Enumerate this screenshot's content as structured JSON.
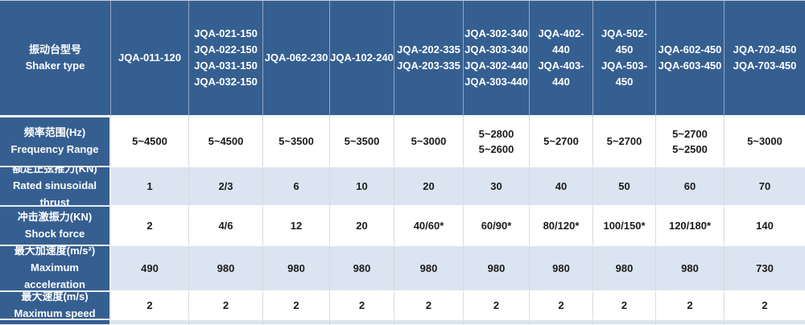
{
  "colors": {
    "header_bg": "#365f91",
    "row_alt_bg": "#dbe5f1",
    "row_bg": "#ffffff",
    "header_text": "#ffffff",
    "value_text": "#1b1b1b"
  },
  "table": {
    "header": {
      "label": "振动台型号\nShaker type",
      "columns": [
        "JQA-011-120",
        "JQA-021-150\nJQA-022-150\nJQA-031-150\nJQA-032-150",
        "JQA-062-230",
        "JQA-102-240",
        "JQA-202-335\nJQA-203-335",
        "JQA-302-340\nJQA-303-340\nJQA-302-440\nJQA-303-440",
        "JQA-402-440\nJQA-403-440",
        "JQA-502-450\nJQA-503-450",
        "JQA-602-450\nJQA-603-450",
        "JQA-702-450\nJQA-703-450"
      ]
    },
    "rows": [
      {
        "label": "频率范围(Hz)\nFrequency Range",
        "values": [
          "5~4500",
          "5~4500",
          "5~3500",
          "5~3500",
          "5~3000",
          "5~2800\n5~2600",
          "5~2700",
          "5~2700",
          "5~2700\n5~2500",
          "5~3000"
        ]
      },
      {
        "label": "额定正弦推力(KN)\nRated sinusoidal thrust",
        "values": [
          "1",
          "2/3",
          "6",
          "10",
          "20",
          "30",
          "40",
          "50",
          "60",
          "70"
        ]
      },
      {
        "label": "冲击激振力(KN)\nShock force",
        "values": [
          "2",
          "4/6",
          "12",
          "20",
          "40/60*",
          "60/90*",
          "80/120*",
          "100/150*",
          "120/180*",
          "140"
        ]
      },
      {
        "label": "最大加速度(m/s²)\nMaximum acceleration",
        "values": [
          "490",
          "980",
          "980",
          "980",
          "980",
          "980",
          "980",
          "980",
          "980",
          "730"
        ]
      },
      {
        "label": "最大速度(m/s)\nMaximum speed",
        "values": [
          "2",
          "2",
          "2",
          "2",
          "2",
          "2",
          "2",
          "2",
          "2",
          "2"
        ]
      }
    ]
  }
}
